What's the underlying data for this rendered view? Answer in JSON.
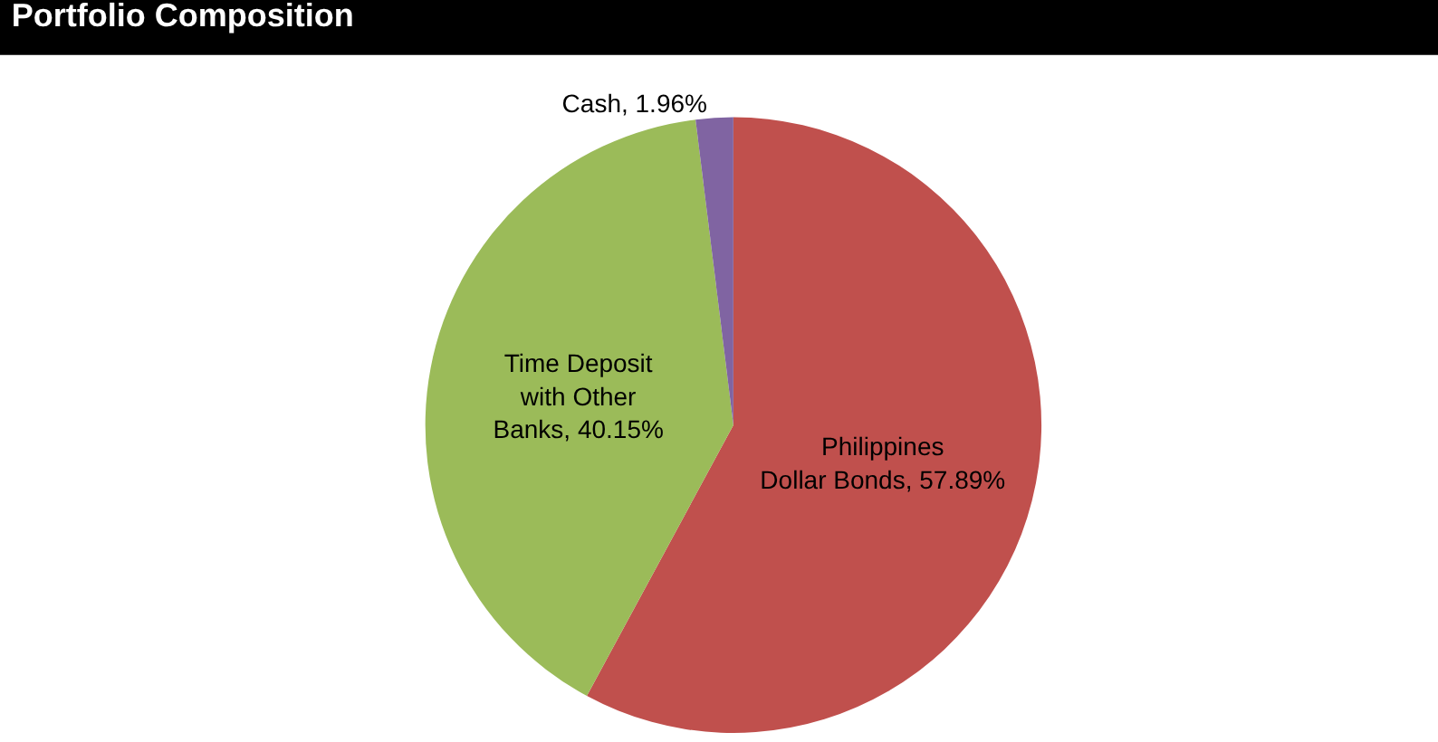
{
  "chart_data": {
    "type": "pie",
    "title": "Portfolio Composition",
    "categories": [
      "Philippines Dollar Bonds",
      "Time Deposit with Other Banks",
      "Cash"
    ],
    "values": [
      57.89,
      40.15,
      1.96
    ],
    "colors": [
      "#c0504d",
      "#9bbb59",
      "#8064a2"
    ],
    "value_labels": [
      "57.89%",
      "40.15%",
      "1.96%"
    ],
    "legend": false
  }
}
